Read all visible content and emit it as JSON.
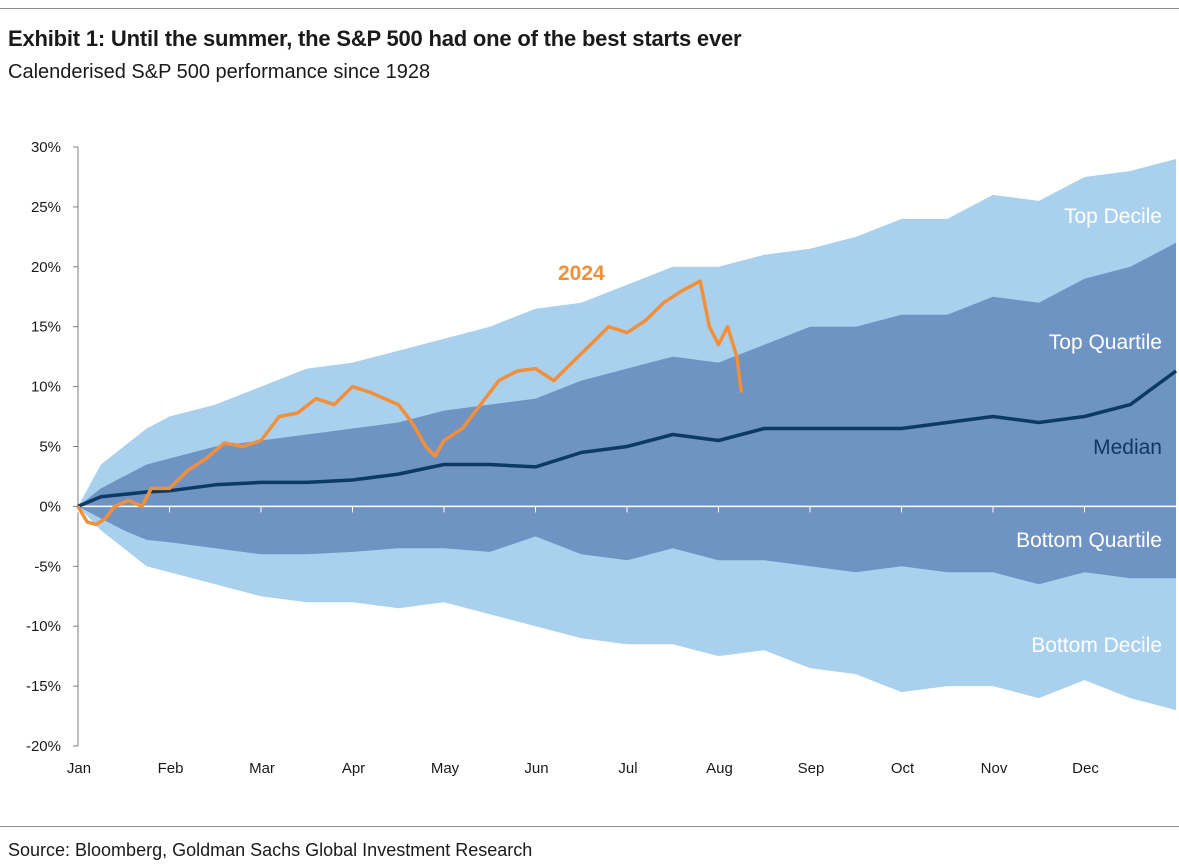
{
  "header": {
    "title": "Exhibit 1: Until the summer, the S&P 500 had one of the best starts ever",
    "subtitle": "Calenderised S&P 500 performance since 1928"
  },
  "footer": {
    "source": "Source: Bloomberg, Goldman Sachs Global Investment Research"
  },
  "colors": {
    "decile_band": "#a9d1ee",
    "quartile_band": "#6f93c3",
    "median_line": "#0d3a63",
    "line_2024": "#f28f3b",
    "band_label": "#ffffff",
    "median_label": "#0d3a63"
  },
  "chart_data": {
    "type": "area",
    "x_unit": "month (0 = start of Jan, 12 = end of Dec)",
    "xlim": [
      0,
      12
    ],
    "ylim": [
      -20,
      30
    ],
    "y_ticks": [
      "30%",
      "25%",
      "20%",
      "15%",
      "10%",
      "5%",
      "0%",
      "-5%",
      "-10%",
      "-15%",
      "-20%"
    ],
    "x_ticks": [
      "Jan",
      "Feb",
      "Mar",
      "Apr",
      "May",
      "Jun",
      "Jul",
      "Aug",
      "Sep",
      "Oct",
      "Nov",
      "Dec"
    ],
    "grid": false,
    "band_labels": {
      "top_decile": "Top Decile",
      "top_quartile": "Top Quartile",
      "median": "Median",
      "bottom_quartile": "Bottom Quartile",
      "bottom_decile": "Bottom Decile"
    },
    "series_label_2024": "2024",
    "x": [
      0,
      0.25,
      0.5,
      0.75,
      1,
      1.5,
      2,
      2.5,
      3,
      3.5,
      4,
      4.5,
      5,
      5.5,
      6,
      6.5,
      7,
      7.5,
      8,
      8.5,
      9,
      9.5,
      10,
      10.5,
      11,
      11.5,
      12
    ],
    "series": [
      {
        "name": "Top Decile",
        "values": [
          0,
          3.5,
          5.0,
          6.5,
          7.5,
          8.5,
          10.0,
          11.5,
          12.0,
          13.0,
          14.0,
          15.0,
          16.5,
          17.0,
          18.5,
          20.0,
          20.0,
          21.0,
          21.5,
          22.5,
          24.0,
          24.0,
          26.0,
          25.5,
          27.5,
          28.0,
          29.0
        ]
      },
      {
        "name": "Top Quartile",
        "values": [
          0,
          1.5,
          2.5,
          3.5,
          4.0,
          5.0,
          5.5,
          6.0,
          6.5,
          7.0,
          8.0,
          8.5,
          9.0,
          10.5,
          11.5,
          12.5,
          12.0,
          13.5,
          15.0,
          15.0,
          16.0,
          16.0,
          17.5,
          17.0,
          19.0,
          20.0,
          22.0
        ]
      },
      {
        "name": "Median",
        "values": [
          0,
          0.8,
          1.0,
          1.2,
          1.3,
          1.8,
          2.0,
          2.0,
          2.2,
          2.7,
          3.5,
          3.5,
          3.3,
          4.5,
          5.0,
          6.0,
          5.5,
          6.5,
          6.5,
          6.5,
          6.5,
          7.0,
          7.5,
          7.0,
          7.5,
          8.5,
          11.3
        ]
      },
      {
        "name": "Bottom Quartile",
        "values": [
          0,
          -1.0,
          -2.0,
          -2.8,
          -3.0,
          -3.5,
          -4.0,
          -4.0,
          -3.8,
          -3.5,
          -3.5,
          -3.8,
          -2.5,
          -4.0,
          -4.5,
          -3.5,
          -4.5,
          -4.5,
          -5.0,
          -5.5,
          -5.0,
          -5.5,
          -5.5,
          -6.5,
          -5.5,
          -6.0,
          -6.0
        ]
      },
      {
        "name": "Bottom Decile",
        "values": [
          0,
          -2.0,
          -3.5,
          -5.0,
          -5.5,
          -6.5,
          -7.5,
          -8.0,
          -8.0,
          -8.5,
          -8.0,
          -9.0,
          -10.0,
          -11.0,
          -11.5,
          -11.5,
          -12.5,
          -12.0,
          -13.5,
          -14.0,
          -15.5,
          -15.0,
          -15.0,
          -16.0,
          -14.5,
          -16.0,
          -17.0
        ]
      }
    ],
    "series_2024": {
      "name": "2024",
      "x": [
        0,
        0.1,
        0.2,
        0.3,
        0.4,
        0.55,
        0.7,
        0.8,
        1.0,
        1.2,
        1.4,
        1.6,
        1.8,
        2.0,
        2.2,
        2.4,
        2.6,
        2.8,
        3.0,
        3.2,
        3.35,
        3.5,
        3.65,
        3.8,
        3.9,
        4.0,
        4.2,
        4.4,
        4.6,
        4.8,
        5.0,
        5.2,
        5.4,
        5.6,
        5.8,
        6.0,
        6.2,
        6.4,
        6.6,
        6.8,
        6.9,
        7.0,
        7.1,
        7.2,
        7.25
      ],
      "values": [
        0,
        -1.3,
        -1.5,
        -1.0,
        0.0,
        0.5,
        0.0,
        1.5,
        1.5,
        3.0,
        4.0,
        5.3,
        5.0,
        5.5,
        7.5,
        7.8,
        9.0,
        8.5,
        10.0,
        9.5,
        9.0,
        8.5,
        7.0,
        5.0,
        4.2,
        5.5,
        6.5,
        8.5,
        10.5,
        11.3,
        11.5,
        10.5,
        12.0,
        13.5,
        15.0,
        14.5,
        15.5,
        17.0,
        18.0,
        18.8,
        15.0,
        13.5,
        15.0,
        12.5,
        9.5
      ]
    }
  }
}
